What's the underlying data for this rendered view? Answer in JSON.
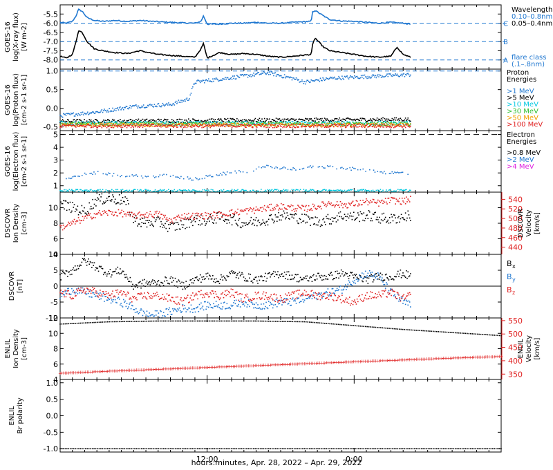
{
  "figure": {
    "xlabel": "hours:minutes, Apr. 28, 2022 – Apr. 29, 2022",
    "xticks": [
      "12:00",
      "0:00"
    ],
    "colors": {
      "black": "#000000",
      "blue": "#1f77d0",
      "cyan": "#00c8e0",
      "green": "#30c030",
      "orange": "#f0a000",
      "red": "#e02020",
      "magenta": "#e020e0",
      "dash": "#1f77d0"
    }
  },
  "chart_data": [
    {
      "type": "line",
      "name": "xray",
      "ylabel": [
        "GOES-16",
        "log(X-ray flux)",
        "[W m-2]"
      ],
      "ylim": [
        -8.5,
        -5.0
      ],
      "yticks": [
        "-5.5",
        "-6.0",
        "-6.5",
        "-7.0",
        "-7.5",
        "-8.0"
      ],
      "yticks_values": [
        -5.5,
        -6.0,
        -6.5,
        -7.0,
        -7.5,
        -8.0
      ],
      "legend_title": "Wavelength",
      "legend": [
        {
          "label": "0.10–0.8nm",
          "color": "#1f77d0"
        },
        {
          "label": "0.05–0.4nm",
          "color": "#000000"
        }
      ],
      "flare_class_label": [
        "flare class",
        "(.1–.8nm)"
      ],
      "flare_levels": [
        {
          "label": "C",
          "value": -6.0
        },
        {
          "label": "B",
          "value": -7.0
        },
        {
          "label": "A",
          "value": -8.0
        }
      ],
      "series": [
        {
          "color": "#1f77d0",
          "x": [
            0,
            0.5,
            1.0,
            1.3,
            1.5,
            1.8,
            2.2,
            2.8,
            3.5,
            4.5,
            5.5,
            6.5,
            8.0,
            9.0,
            10.0,
            11.0,
            11.5,
            11.7,
            12.0,
            13.0,
            14.0,
            15.0,
            16.0,
            17.0,
            18.0,
            19.0,
            20.5,
            20.6,
            20.8,
            21.5,
            22.0,
            23.0,
            24.0,
            25.0,
            26.0,
            27.0,
            28.0,
            28.6
          ],
          "y": [
            -5.95,
            -6.0,
            -5.9,
            -5.6,
            -5.25,
            -5.35,
            -5.7,
            -5.85,
            -5.9,
            -5.85,
            -5.9,
            -5.85,
            -5.92,
            -5.95,
            -5.98,
            -6.0,
            -5.9,
            -5.6,
            -6.05,
            -6.05,
            -6.0,
            -6.0,
            -5.95,
            -6.0,
            -6.0,
            -5.95,
            -5.9,
            -5.4,
            -5.3,
            -5.6,
            -5.8,
            -5.88,
            -5.9,
            -5.95,
            -6.0,
            -5.95,
            -6.0,
            -6.05
          ]
        },
        {
          "color": "#000000",
          "x": [
            0,
            0.5,
            1.0,
            1.3,
            1.5,
            1.8,
            2.2,
            2.8,
            3.5,
            4.5,
            5.5,
            6.5,
            8.0,
            9.0,
            10.0,
            11.0,
            11.5,
            11.7,
            12.0,
            13.0,
            14.0,
            15.0,
            16.0,
            17.0,
            18.0,
            19.0,
            20.5,
            20.6,
            20.8,
            21.5,
            22.0,
            23.0,
            24.0,
            25.0,
            26.0,
            27.0,
            27.5,
            28.0,
            28.6
          ],
          "y": [
            -7.8,
            -7.9,
            -7.7,
            -7.0,
            -6.4,
            -6.5,
            -7.0,
            -7.4,
            -7.5,
            -7.6,
            -7.65,
            -7.5,
            -7.7,
            -7.75,
            -7.8,
            -7.85,
            -7.4,
            -7.1,
            -7.9,
            -7.6,
            -7.7,
            -7.65,
            -7.7,
            -7.8,
            -7.85,
            -7.8,
            -7.7,
            -7.2,
            -6.8,
            -7.3,
            -7.5,
            -7.6,
            -7.7,
            -7.8,
            -7.85,
            -7.8,
            -7.3,
            -7.7,
            -7.85
          ]
        }
      ]
    },
    {
      "type": "scatter",
      "name": "proton",
      "ylabel": [
        "GOES-16",
        "log(Proton flux)",
        "[cm-2 s-1 sr-1]"
      ],
      "ylim": [
        -0.6,
        1.05
      ],
      "yticks": [
        "1.0",
        "0.5",
        "0.0",
        "-0.5"
      ],
      "yticks_values": [
        1.0,
        0.5,
        0.0,
        -0.5
      ],
      "legend_title": [
        "Proton",
        "Energies"
      ],
      "legend": [
        {
          "label": ">1 MeV",
          "color": "#1f77d0"
        },
        {
          "label": ">5 MeV",
          "color": "#000000"
        },
        {
          "label": ">10 MeV",
          "color": "#00c8e0"
        },
        {
          "label": ">30 MeV",
          "color": "#30c030"
        },
        {
          "label": ">50 MeV",
          "color": "#f0a000"
        },
        {
          "label": ">100 MeV",
          "color": "#e02020"
        }
      ],
      "series": [
        {
          "color": "#1f77d0",
          "x": [
            0,
            3,
            6,
            9,
            10.5,
            11,
            14,
            17,
            19,
            20,
            22,
            25,
            28.6
          ],
          "y": [
            -0.2,
            -0.1,
            0.05,
            0.1,
            0.25,
            0.7,
            0.82,
            0.95,
            0.8,
            0.7,
            0.8,
            0.85,
            0.9
          ]
        },
        {
          "color": "#000000",
          "x": [
            0,
            28.6
          ],
          "y": [
            -0.35,
            -0.3
          ]
        },
        {
          "color": "#00c8e0",
          "x": [
            0,
            28.6
          ],
          "y": [
            -0.4,
            -0.4
          ]
        },
        {
          "color": "#30c030",
          "x": [
            0,
            28.6
          ],
          "y": [
            -0.42,
            -0.42
          ]
        },
        {
          "color": "#f0a000",
          "x": [
            0,
            28.6
          ],
          "y": [
            -0.45,
            -0.45
          ]
        },
        {
          "color": "#e02020",
          "x": [
            0,
            28.6
          ],
          "y": [
            -0.47,
            -0.47
          ]
        }
      ]
    },
    {
      "type": "scatter",
      "name": "electron",
      "ylabel": [
        "GOES-16",
        "log(Electron flux)",
        "[cm-2 s-1 sr-1]"
      ],
      "ylim": [
        0.5,
        5.3
      ],
      "yticks": [
        "5",
        "4",
        "3",
        "2",
        "1"
      ],
      "yticks_values": [
        5,
        4,
        3,
        2,
        1
      ],
      "legend_title": [
        "Electron",
        "Energies"
      ],
      "legend": [
        {
          "label": ">0.8 MeV",
          "color": "#000000"
        },
        {
          "label": ">2 MeV",
          "color": "#1f77d0"
        },
        {
          "label": ">4 MeV",
          "color": "#e020e0"
        }
      ],
      "threshold": 5.0,
      "series": [
        {
          "color": "#1f77d0",
          "x": [
            0.5,
            2,
            3,
            5,
            7,
            9,
            11,
            13,
            15,
            17,
            19,
            21,
            23,
            25,
            27,
            28.5
          ],
          "y": [
            1.5,
            1.9,
            2.0,
            1.8,
            1.7,
            1.8,
            1.5,
            1.9,
            2.1,
            2.5,
            2.3,
            2.5,
            2.4,
            2.2,
            2.0,
            2.0
          ]
        },
        {
          "color": "#00c8e0",
          "x": [
            0,
            28.6
          ],
          "y": [
            0.6,
            0.6
          ]
        }
      ]
    },
    {
      "type": "scatter",
      "name": "dscovr_plasma",
      "ylabel": [
        "DSCOVR",
        "Ion Density",
        "[cm-3]"
      ],
      "ylabel_right": [
        "DSCOVR",
        "Velocity",
        "[km/s]"
      ],
      "ylim": [
        4,
        12
      ],
      "yticks": [
        "10",
        "8",
        "6",
        "4"
      ],
      "yticks_values": [
        10,
        8,
        6,
        4
      ],
      "ylim_right": [
        425,
        555
      ],
      "yticks_right": [
        "540",
        "520",
        "500",
        "480",
        "460",
        "440"
      ],
      "yticks_right_values": [
        540,
        520,
        500,
        480,
        460,
        440
      ],
      "series": [
        {
          "color": "#000000",
          "axis": "left",
          "x": [
            0,
            1,
            2,
            3,
            4,
            5,
            5.5,
            6,
            7,
            8,
            9,
            10,
            11,
            12,
            13,
            14,
            15,
            16,
            17,
            18,
            19,
            20,
            21,
            22,
            23,
            24,
            25,
            26,
            27,
            28,
            28.6
          ],
          "y": [
            10.5,
            10.0,
            9.5,
            11.0,
            11.2,
            11.0,
            10.5,
            8.5,
            8.0,
            8.2,
            7.5,
            7.8,
            8.5,
            8.3,
            8.8,
            8.5,
            8.0,
            8.2,
            8.5,
            9.0,
            8.8,
            8.5,
            8.2,
            8.5,
            9.0,
            8.8,
            9.0,
            8.7,
            8.5,
            8.8,
            9.0
          ]
        },
        {
          "color": "#e02020",
          "axis": "right",
          "x": [
            0,
            1,
            2,
            3,
            4,
            5,
            6,
            7,
            8,
            9,
            10,
            11,
            12,
            13,
            14,
            15,
            16,
            17,
            18,
            19,
            20,
            21,
            22,
            23,
            24,
            25,
            26,
            27,
            28,
            28.6
          ],
          "y": [
            480,
            490,
            500,
            510,
            512,
            511,
            505,
            508,
            509,
            495,
            505,
            505,
            506,
            508,
            512,
            515,
            518,
            522,
            525,
            522,
            520,
            525,
            532,
            528,
            530,
            535,
            532,
            538,
            536,
            540
          ]
        }
      ]
    },
    {
      "type": "scatter",
      "name": "dscovr_mag",
      "ylabel": [
        "DSCOVR",
        "[nT]"
      ],
      "ylim": [
        -10,
        10
      ],
      "yticks": [
        "10",
        "5",
        "0",
        "-5",
        "-10"
      ],
      "yticks_values": [
        10,
        5,
        0,
        -5,
        -10
      ],
      "zero_line": 0,
      "legend": [
        {
          "label": "B",
          "sub": "x",
          "color": "#000000"
        },
        {
          "label": "B",
          "sub": "y",
          "color": "#1f77d0"
        },
        {
          "label": "B",
          "sub": "z",
          "color": "#e02020"
        }
      ],
      "series": [
        {
          "color": "#000000",
          "x": [
            0,
            1,
            2,
            3,
            4,
            5,
            6,
            7,
            8,
            9,
            10,
            11,
            12,
            13,
            14,
            15,
            16,
            17,
            18,
            19,
            20,
            21,
            22,
            23,
            24,
            25,
            26,
            27,
            28,
            28.6
          ],
          "y": [
            3,
            5,
            8,
            6,
            4,
            5,
            0,
            1,
            1,
            2,
            0,
            2,
            3,
            2,
            4,
            3,
            2,
            3,
            4,
            3,
            2,
            3,
            3,
            4,
            3,
            2,
            3,
            3,
            4,
            3
          ]
        },
        {
          "color": "#1f77d0",
          "x": [
            0,
            1,
            2,
            3,
            4,
            5,
            6,
            7,
            8,
            9,
            10,
            11,
            12,
            13,
            14,
            15,
            16,
            17,
            18,
            19,
            20,
            21,
            22,
            23,
            24,
            25,
            26,
            27,
            28,
            28.6
          ],
          "y": [
            -3,
            -1,
            -2,
            -3,
            -4,
            -5,
            -7,
            -9,
            -9,
            -8,
            -7,
            -7,
            -6,
            -6,
            -6,
            -5,
            -6,
            -6,
            -5,
            -5,
            -4,
            -3,
            -2,
            -1,
            2,
            4,
            3,
            -2,
            -5,
            -6
          ]
        },
        {
          "color": "#e02020",
          "x": [
            0,
            1,
            2,
            3,
            4,
            5,
            6,
            7,
            8,
            9,
            10,
            11,
            12,
            13,
            14,
            15,
            16,
            17,
            18,
            19,
            20,
            21,
            22,
            23,
            24,
            25,
            26,
            27,
            28,
            28.6
          ],
          "y": [
            -2,
            -3,
            -1,
            -2,
            -3,
            -2,
            -4,
            -3,
            -3,
            -4,
            -5,
            -3,
            -2,
            -3,
            -2,
            -4,
            -3,
            -3,
            -4,
            -3,
            -2,
            -3,
            -3,
            -4,
            -5,
            -3,
            -3,
            -2,
            -4,
            -3
          ]
        }
      ]
    },
    {
      "type": "scatter",
      "name": "enlil_plasma",
      "ylabel": [
        "ENLIL",
        "Ion Density",
        "[cm-3]"
      ],
      "ylabel_right": [
        "ENLIL",
        "Velocity",
        "[km/s]"
      ],
      "ylim": [
        4,
        12
      ],
      "yticks": [
        "12",
        "10",
        "8",
        "6",
        "4"
      ],
      "yticks_values": [
        12,
        10,
        8,
        6,
        4
      ],
      "ylim_right": [
        330,
        560
      ],
      "yticks_right": [
        "550",
        "500",
        "450",
        "400",
        "350"
      ],
      "yticks_right_values": [
        550,
        500,
        450,
        400,
        350
      ],
      "series": [
        {
          "color": "#000000",
          "axis": "left",
          "x": [
            0,
            4,
            8,
            12,
            16,
            20,
            24,
            28,
            32,
            36
          ],
          "y": [
            11.2,
            11.5,
            11.6,
            11.6,
            11.6,
            11.5,
            11.0,
            10.5,
            10.1,
            9.7
          ]
        },
        {
          "color": "#e02020",
          "axis": "right",
          "x": [
            0,
            4,
            8,
            12,
            16,
            20,
            24,
            28,
            32,
            36
          ],
          "y": [
            355,
            363,
            370,
            377,
            384,
            391,
            398,
            405,
            412,
            418
          ]
        }
      ]
    },
    {
      "type": "scatter",
      "name": "enlil_polarity",
      "ylabel": [
        "ENLIL",
        "Br polarity"
      ],
      "ylim": [
        -1.1,
        1.1
      ],
      "yticks": [
        "1.0",
        "0.5",
        "0.0",
        "-0.5",
        "-1.0"
      ],
      "yticks_values": [
        1.0,
        0.5,
        0.0,
        -0.5,
        -1.0
      ],
      "series": [
        {
          "color": "#000000",
          "x": [
            0,
            36
          ],
          "y": [
            -1.0,
            -1.0
          ]
        }
      ]
    }
  ]
}
